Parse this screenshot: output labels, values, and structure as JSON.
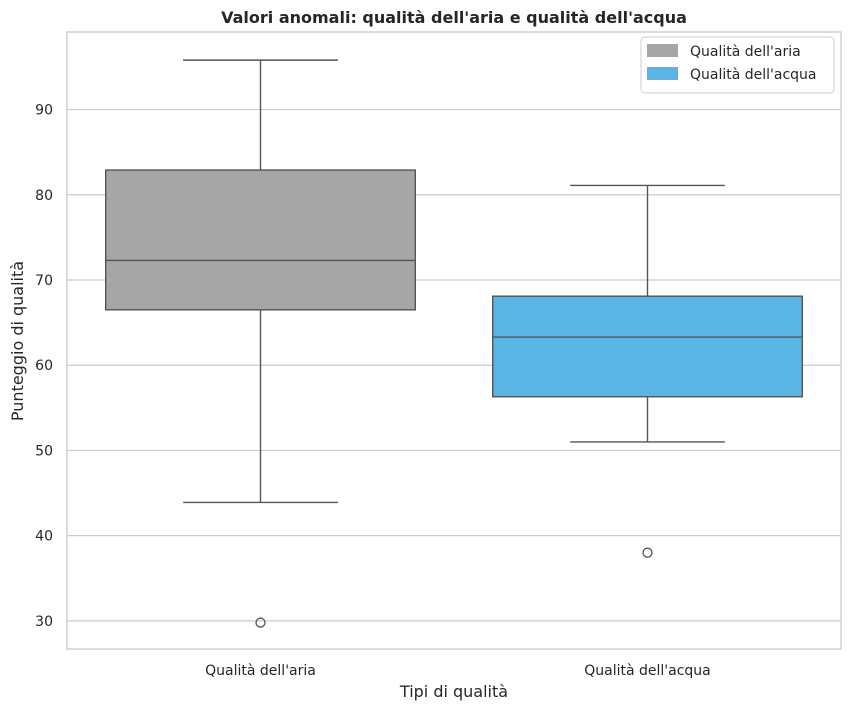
{
  "chart_data": {
    "type": "box",
    "title": "Valori anomali: qualità dell'aria e qualità dell'acqua",
    "xlabel": "Tipi di qualità",
    "ylabel": "Punteggio di qualità",
    "ylim": [
      26.7,
      99.1
    ],
    "yticks": [
      30,
      40,
      50,
      60,
      70,
      80,
      90
    ],
    "grid": true,
    "legend_position": "top-right",
    "series": [
      {
        "name": "Qualità dell'aria",
        "category": "Qualità dell'aria",
        "color": "#a6a6a6",
        "whisker_low": 43.9,
        "q1": 66.5,
        "median": 72.3,
        "q3": 82.9,
        "whisker_high": 95.8,
        "outliers": [
          29.8
        ]
      },
      {
        "name": "Qualità dell'acqua",
        "category": "Qualità dell'acqua",
        "color": "#5ab4e5",
        "whisker_low": 51.0,
        "q1": 56.3,
        "median": 63.3,
        "q3": 68.1,
        "whisker_high": 81.1,
        "outliers": [
          38.0
        ]
      }
    ]
  }
}
